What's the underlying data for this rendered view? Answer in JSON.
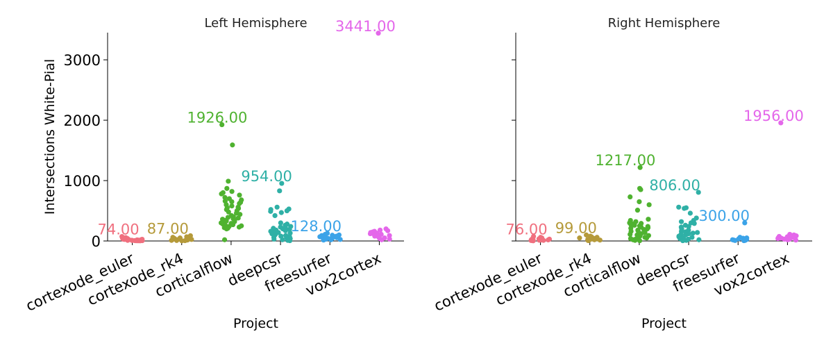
{
  "figure": {
    "ylabel": "Intersections White-Pial",
    "xlabel": "Project"
  },
  "colors": {
    "cortexode_euler": "#f0707f",
    "cortexode_rk4": "#b59a3a",
    "corticalflow": "#4fb230",
    "deepcsr": "#2fb0a6",
    "freesurfer": "#3ba3e8",
    "vox2cortex": "#e467ea"
  },
  "chart_data": [
    {
      "type": "scatter",
      "title": "Left Hemisphere",
      "xlabel": "Project",
      "ylabel": "Intersections White-Pial",
      "categories": [
        "cortexode_euler",
        "cortexode_rk4",
        "corticalflow",
        "deepcsr",
        "freesurfer",
        "vox2cortex"
      ],
      "ylim": [
        0,
        3450
      ],
      "yticks": [
        0,
        1000,
        2000,
        3000
      ],
      "grid": false,
      "series": [
        {
          "category": "cortexode_euler",
          "max_label": "74.00",
          "values": [
            74,
            55,
            48,
            40,
            35,
            30,
            28,
            25,
            22,
            20,
            18,
            15,
            12,
            10,
            8,
            6,
            5,
            4,
            3,
            2
          ]
        },
        {
          "category": "cortexode_rk4",
          "max_label": "87.00",
          "values": [
            87,
            70,
            60,
            50,
            45,
            40,
            35,
            30,
            25,
            20,
            15,
            10,
            8,
            5,
            3
          ]
        },
        {
          "category": "corticalflow",
          "max_label": "1926.00",
          "values": [
            1926,
            1590,
            990,
            870,
            820,
            800,
            780,
            760,
            720,
            700,
            680,
            660,
            650,
            640,
            620,
            600,
            580,
            560,
            550,
            540,
            520,
            500,
            480,
            460,
            440,
            420,
            400,
            390,
            380,
            370,
            360,
            350,
            340,
            330,
            320,
            300,
            290,
            280,
            270,
            260,
            250,
            240,
            230,
            220,
            210,
            200,
            20
          ]
        },
        {
          "category": "deepcsr",
          "max_label": "954.00",
          "values": [
            954,
            830,
            560,
            530,
            520,
            500,
            490,
            470,
            420,
            300,
            280,
            260,
            240,
            230,
            220,
            210,
            200,
            190,
            180,
            170,
            160,
            150,
            140,
            130,
            120,
            110,
            100,
            90,
            80,
            70,
            60,
            50,
            40,
            30,
            20,
            10,
            5
          ]
        },
        {
          "category": "freesurfer",
          "max_label": "128.00",
          "values": [
            128,
            110,
            100,
            95,
            90,
            85,
            80,
            75,
            70,
            65,
            60,
            55,
            50,
            45,
            40,
            35,
            30,
            25,
            20,
            15
          ]
        },
        {
          "category": "vox2cortex",
          "max_label": "3441.00",
          "values": [
            3441,
            200,
            180,
            170,
            160,
            150,
            140,
            130,
            120,
            110,
            100,
            90,
            80,
            70,
            60,
            50,
            40,
            30,
            20
          ]
        }
      ]
    },
    {
      "type": "scatter",
      "title": "Right Hemisphere",
      "xlabel": "Project",
      "ylabel": "",
      "categories": [
        "cortexode_euler",
        "cortexode_rk4",
        "corticalflow",
        "deepcsr",
        "freesurfer",
        "vox2cortex"
      ],
      "ylim": [
        0,
        3450
      ],
      "yticks": [
        0,
        1000,
        2000,
        3000
      ],
      "grid": false,
      "series": [
        {
          "category": "cortexode_euler",
          "max_label": "76.00",
          "values": [
            76,
            60,
            50,
            40,
            35,
            30,
            25,
            20,
            18,
            15,
            12,
            10,
            8,
            5,
            3
          ]
        },
        {
          "category": "cortexode_rk4",
          "max_label": "99.00",
          "values": [
            99,
            80,
            70,
            60,
            50,
            45,
            40,
            35,
            30,
            25,
            20,
            15,
            10,
            5
          ]
        },
        {
          "category": "corticalflow",
          "max_label": "1217.00",
          "values": [
            1217,
            870,
            850,
            730,
            650,
            600,
            510,
            360,
            340,
            320,
            300,
            290,
            280,
            270,
            260,
            250,
            240,
            230,
            220,
            210,
            200,
            190,
            180,
            170,
            160,
            150,
            140,
            130,
            120,
            110,
            100,
            90,
            80,
            70,
            60,
            50,
            40,
            30,
            20,
            10,
            5
          ]
        },
        {
          "category": "deepcsr",
          "max_label": "806.00",
          "values": [
            806,
            560,
            550,
            540,
            460,
            380,
            340,
            320,
            300,
            290,
            260,
            240,
            230,
            200,
            180,
            160,
            150,
            140,
            130,
            120,
            110,
            100,
            90,
            80,
            70,
            60,
            50,
            40,
            30,
            20,
            10,
            5
          ]
        },
        {
          "category": "freesurfer",
          "max_label": "300.00",
          "values": [
            300,
            60,
            50,
            45,
            40,
            35,
            30,
            25,
            20,
            15,
            10,
            8,
            5
          ]
        },
        {
          "category": "vox2cortex",
          "max_label": "1956.00",
          "values": [
            1956,
            110,
            100,
            95,
            90,
            85,
            80,
            75,
            70,
            65,
            60,
            55,
            50,
            45,
            40,
            35,
            30,
            25,
            20,
            15
          ]
        }
      ]
    }
  ]
}
